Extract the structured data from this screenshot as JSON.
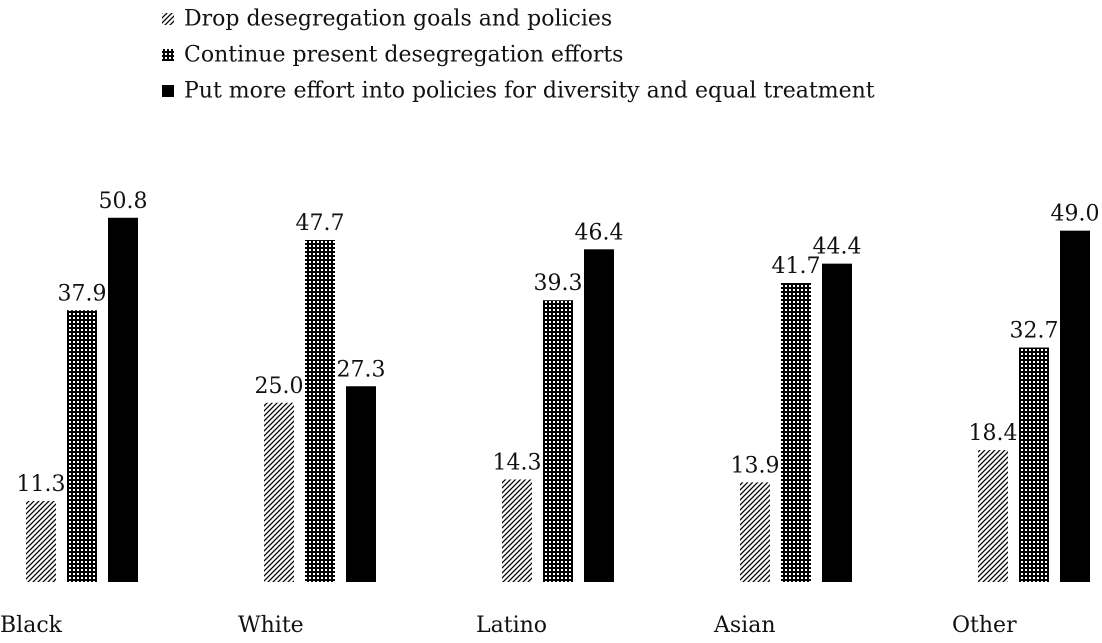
{
  "chart_data": {
    "type": "bar",
    "categories": [
      "Black",
      "White",
      "Latino",
      "Asian",
      "Other"
    ],
    "series": [
      {
        "name": "Drop desegregation goals and policies",
        "values": [
          11.3,
          25.0,
          14.3,
          13.9,
          18.4
        ],
        "pattern": "diagonal-hatch"
      },
      {
        "name": "Continue present desegregation efforts",
        "values": [
          37.9,
          47.7,
          39.3,
          41.7,
          32.7
        ],
        "pattern": "dotted-grid"
      },
      {
        "name": "Put more effort into policies for diversity and equal treatment",
        "values": [
          50.8,
          27.3,
          46.4,
          44.4,
          49.0
        ],
        "pattern": "solid"
      }
    ],
    "title": "",
    "xlabel": "",
    "ylabel": "",
    "ylim": [
      0,
      60
    ],
    "grid": false,
    "legend_position": "top",
    "colors": {
      "bar": "#000000",
      "background": "#ffffff"
    }
  }
}
